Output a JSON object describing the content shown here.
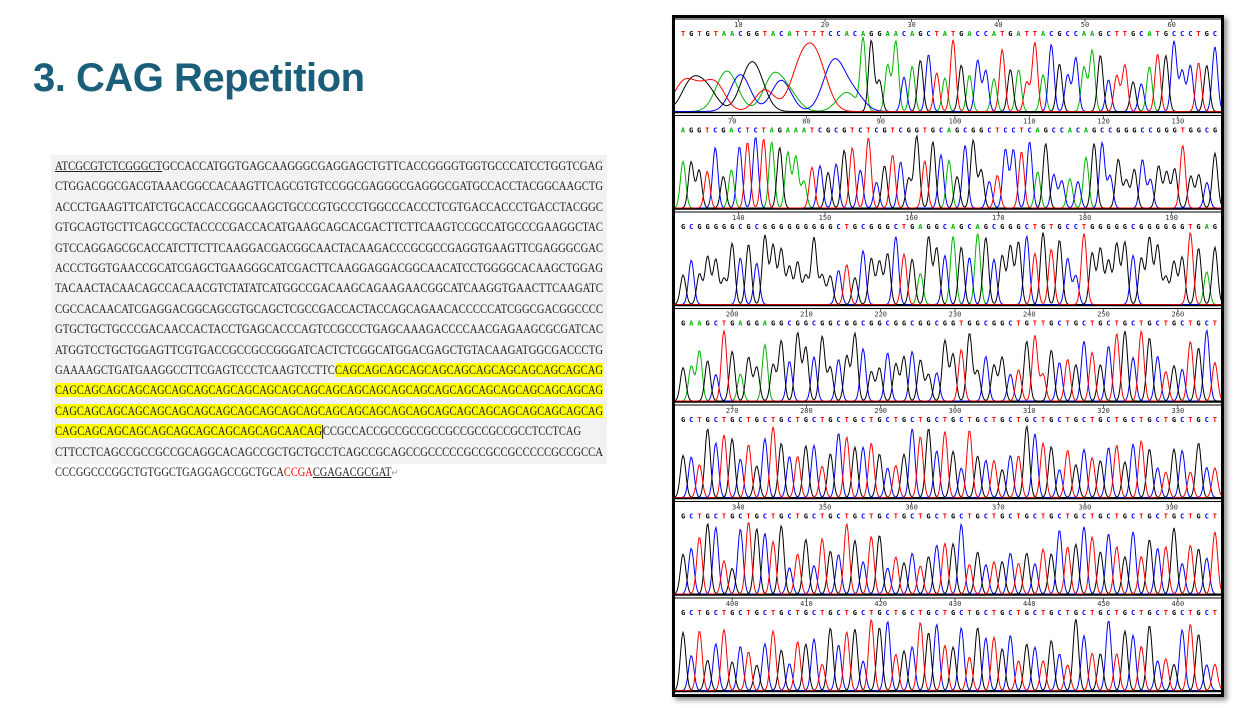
{
  "title": "3. CAG Repetition",
  "sequence": {
    "lines": [
      [
        {
          "t": "ATCGCGTCTCGGGCT",
          "s": "ul"
        },
        {
          "t": "GCCACCATGGTGAGCAAGGGCGAGGAGCTGTTCACCGGGGTGGTGCCCATCCTGGTCGAG"
        }
      ],
      [
        {
          "t": "CTGGACGGCGACGTAAACGGCCACAAGTTCAGCGTGTCCGGCGAGGGCGAGGGCGATGCCACCTACGGCAAGCTG"
        }
      ],
      [
        {
          "t": "ACCCTGAAGTTCATCTGCACCACCGGCAAGCTGCCCGTGCCCTGGCCCACCCTCGTGACCACCCTGACCTACGGC"
        }
      ],
      [
        {
          "t": "GTGCAGTGCTTCAGCCGCTACCCCGACCACATGAAGCAGCACGACTTCTTCAAGTCCGCCATGCCCGAAGGCTAC"
        }
      ],
      [
        {
          "t": "GTCCAGGAGCGCACCATCTTCTTCAAGGACGACGGCAACTACAAGACCCGCGCCGAGGTGAAGTTCGAGGGCGAC"
        }
      ],
      [
        {
          "t": "ACCCTGGTGAACCGCATCGAGCTGAAGGGCATCGACTTCAAGGAGGACGGCAACATCCTGGGGCACAAGCTGGAG"
        }
      ],
      [
        {
          "t": "TACAACTACAACAGCCACAACGTCTATATCATGGCCGACAAGCAGAAGAACGGCATCAAGGTGAACTTCAAGATC"
        }
      ],
      [
        {
          "t": "CGCCACAACATCGAGGACGGCAGCGTGCAGCTCGCCGACCACTACCAGCAGAACACCCCCATCGGCGACGGCCCC"
        }
      ],
      [
        {
          "t": "GTGCTGCTGCCCGACAACCACTACCTGAGCACCCAGTCCGCCCTGAGCAAAGACCCCAACGAGAAGCGCGATCAC"
        }
      ],
      [
        {
          "t": "ATGGTCCTGCTGGAGTTCGTGACCGCCGCCGGGATCACTCTCGGCATGGACGAGCTGTACAAGATGGCGACCCTG"
        }
      ],
      [
        {
          "t": "GAAAAGCTGATGAAGGCCTTCGAGTCCCTCAAGTCCTTC"
        },
        {
          "t": "CAGCAGCAGCAGCAGCAGCAGCAGCAGCAGCAGCAG",
          "s": "hl"
        }
      ],
      [
        {
          "t": "CAGCAGCAGCAGCAGCAGCAGCAGCAGCAGCAGCAGCAGCAGCAGCAGCAGCAGCAGCAGCAGCAGCAGCAGCAG",
          "s": "hl"
        }
      ],
      [
        {
          "t": "CAGCAGCAGCAGCAGCAGCAGCAGCAGCAGCAGCAGCAGCAGCAGCAGCAGCAGCAGCAGCAGCAGCAGCAGCAG",
          "s": "hl"
        }
      ],
      [
        {
          "t": "CAGCAGCAGCAGCAGCAGCAGCAGCAGCAGCAACAG",
          "s": "hl"
        },
        {
          "t": "",
          "s": "cursor"
        },
        {
          "t": "CCGCCACCGCCGCCGCCGCCGCCGCCGCCTCCTCAG"
        }
      ],
      [
        {
          "t": "CTTCCTCAGCCGCCGCCGCAGGCACAGCCGCTGCTGCCTCAGCCGCAGCCGCCCCCGCCGCCGCCCCCGCCGCCA"
        }
      ],
      [
        {
          "t": "CCCGGCCCGGCTGTGGCTGAGGAGCCGCTGCA"
        },
        {
          "t": "CCGA",
          "s": "red"
        },
        {
          "t": "CGAGACGCGAT",
          "s": "ul"
        },
        {
          "t": "↵",
          "s": "mark"
        }
      ]
    ]
  },
  "chromatogram": {
    "base_colors": {
      "A": "#00b400",
      "C": "#0000ff",
      "G": "#000000",
      "T": "#ff0000"
    },
    "panels": [
      {
        "ruler": [
          10,
          20,
          30,
          40,
          50,
          60
        ],
        "bases": "TGTGTAACGGTACATTTTCCACAGGAACAGCTATGACCATGATTACGCCAAGCTTGCATGCCCTGC"
      },
      {
        "ruler": [
          70,
          80,
          90,
          100,
          110,
          120,
          130
        ],
        "bases": "AGGTCGACTCTAGAAATCGCGTCTCGTCGGTGCAGCGGCTCCTCAGCCACAGCCGGGCCGGGTGGCG"
      },
      {
        "ruler": [
          140,
          150,
          160,
          170,
          180,
          190
        ],
        "bases": "GCGGGGGCGCGGGGGGGGGCTGCGGGCTGAGGCAGCAGCGGGCTGTGCCTGGGGGCGGGGGGTGAG"
      },
      {
        "ruler": [
          200,
          210,
          220,
          230,
          240,
          250,
          260
        ],
        "bases": "GAAGCTGAGGAGGCGGCGGCGGCGGCGGCGGCGGTGGCGGCTGTTGCTGCTGCTGCTGCTGCTGCT"
      },
      {
        "ruler": [
          270,
          280,
          290,
          300,
          310,
          320,
          330
        ],
        "bases": "GCTGCTGCTGCTGCTGCTGCTGCTGCTGCTGCTGCTGCTGCTGCTGCTGCTGCTGCTGCTGCTGCT"
      },
      {
        "ruler": [
          340,
          350,
          360,
          370,
          380,
          390
        ],
        "bases": "GCTGCTGCTGCTGCTGCTGCTGCTGCTGCTGCTGCTGCTGCTGCTGCTGCTGCTGCTGCTGCTGCT"
      },
      {
        "ruler": [
          400,
          410,
          420,
          430,
          440,
          450,
          460
        ],
        "bases": "GCTGCTGCTGCTGCTGCTGCTGCTGCTGCTGCTGCTGCTGCTGCTGCTGCTGCTGCTGCTGCTGCT"
      }
    ]
  }
}
